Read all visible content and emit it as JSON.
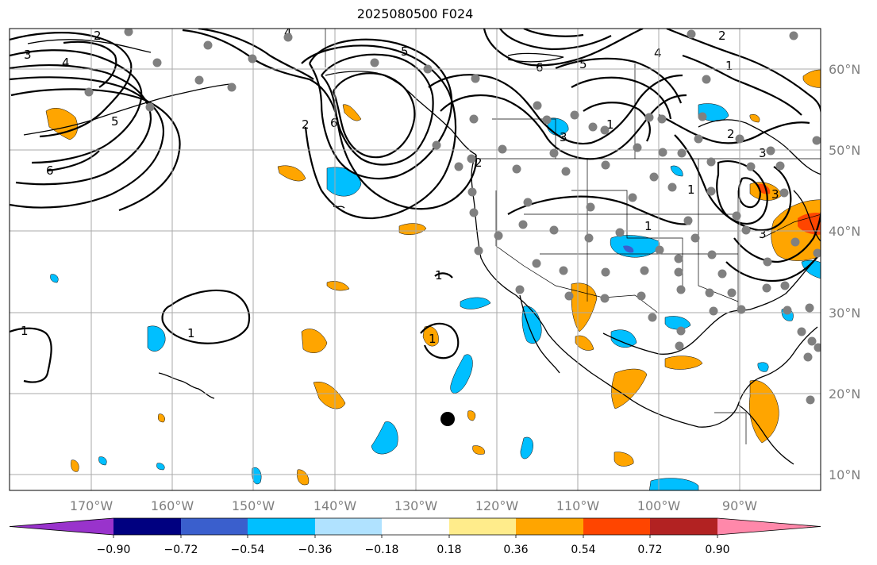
{
  "title": "2025080500 F024",
  "lon_labels": [
    "170°W",
    "160°W",
    "150°W",
    "140°W",
    "130°W",
    "120°W",
    "110°W",
    "100°W",
    "90°W"
  ],
  "lat_labels": [
    "60°N",
    "50°N",
    "40°N",
    "30°N",
    "20°N",
    "10°N"
  ],
  "colorbar": {
    "colors": [
      "#9933cc",
      "#000080",
      "#3a5fcd",
      "#00bfff",
      "#b0e2ff",
      "#ffffff",
      "#ffec8b",
      "#ffa500",
      "#ff4500",
      "#b22222",
      "#ff88aa"
    ],
    "tick_labels": [
      "−0.90",
      "−0.72",
      "−0.54",
      "−0.36",
      "−0.18",
      "0.18",
      "0.36",
      "0.54",
      "0.72",
      "0.90"
    ]
  },
  "contour_labels": [
    "3",
    "4",
    "2",
    "5",
    "4",
    "6",
    "5",
    "4",
    "1",
    "3",
    "2",
    "5",
    "6",
    "2",
    "3",
    "2",
    "2",
    "6",
    "1",
    "3",
    "1",
    "1",
    "1",
    "3",
    "1",
    "1",
    "1"
  ],
  "colors": {
    "land_line": "#000000",
    "grid": "#aaaaaa",
    "station_dot": "#808080",
    "marker": "#000000"
  }
}
